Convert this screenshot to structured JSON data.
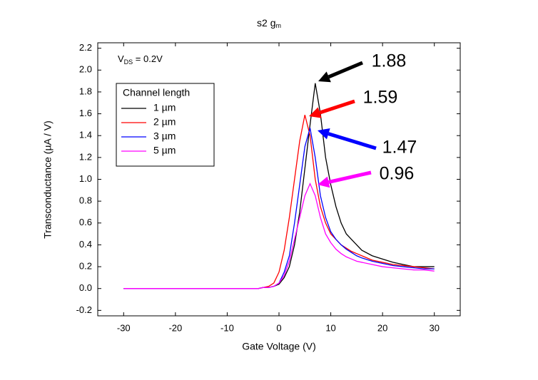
{
  "chart_data": {
    "type": "line",
    "title": "s2 g",
    "title_subscript": "m",
    "x_label": "Gate Voltage (V)",
    "y_label": "Transconductance (µA / V)",
    "condition": {
      "symbol": "V",
      "subscript": "DS",
      "text": " = 0.2V"
    },
    "legend_title": "Channel length",
    "legend": "upper left",
    "xlim": [
      -35,
      35
    ],
    "xticks": [
      -30,
      -20,
      -10,
      0,
      10,
      20,
      30
    ],
    "ylim": [
      -0.25,
      2.25
    ],
    "yticks": [
      -0.2,
      {
        "value": 0,
        "label": "0.0"
      },
      0.2,
      0.4,
      0.6,
      0.8,
      {
        "value": 1,
        "label": "1.0"
      },
      1.2,
      1.4,
      1.6,
      1.8,
      {
        "value": 2,
        "label": "2.0"
      },
      2.2
    ],
    "x": [
      -30,
      -25,
      -20,
      -15,
      -10,
      -5,
      -4,
      -3,
      -2,
      -1,
      0,
      1,
      2,
      3,
      4,
      5,
      6,
      7,
      8,
      9,
      10,
      11,
      12,
      13,
      14,
      15,
      16,
      18,
      20,
      22,
      24,
      26,
      28,
      30
    ],
    "series": [
      {
        "name": "1 µm",
        "color": "#000000",
        "values": [
          0,
          0,
          0,
          0,
          0,
          0,
          0,
          0.01,
          0.01,
          0.02,
          0.04,
          0.1,
          0.2,
          0.4,
          0.7,
          1.1,
          1.5,
          1.88,
          1.6,
          1.2,
          0.95,
          0.75,
          0.6,
          0.5,
          0.45,
          0.4,
          0.35,
          0.3,
          0.27,
          0.24,
          0.22,
          0.2,
          0.2,
          0.2
        ]
      },
      {
        "name": "2 µm",
        "color": "#ff0000",
        "values": [
          0,
          0,
          0,
          0,
          0,
          0,
          0,
          0.01,
          0.02,
          0.05,
          0.15,
          0.35,
          0.65,
          1.0,
          1.35,
          1.59,
          1.4,
          1.0,
          0.75,
          0.6,
          0.5,
          0.45,
          0.4,
          0.37,
          0.34,
          0.32,
          0.3,
          0.26,
          0.24,
          0.22,
          0.21,
          0.2,
          0.19,
          0.18
        ]
      },
      {
        "name": "3 µm",
        "color": "#0000ff",
        "values": [
          0,
          0,
          0,
          0,
          0,
          0,
          0,
          0.01,
          0.01,
          0.02,
          0.05,
          0.15,
          0.3,
          0.6,
          0.95,
          1.3,
          1.47,
          1.2,
          0.85,
          0.65,
          0.52,
          0.45,
          0.4,
          0.36,
          0.33,
          0.3,
          0.28,
          0.25,
          0.23,
          0.21,
          0.2,
          0.19,
          0.18,
          0.18
        ]
      },
      {
        "name": "5 µm",
        "color": "#ff00ff",
        "values": [
          0,
          0,
          0,
          0,
          0,
          0,
          0,
          0.01,
          0.01,
          0.02,
          0.05,
          0.12,
          0.25,
          0.45,
          0.65,
          0.85,
          0.96,
          0.85,
          0.65,
          0.5,
          0.42,
          0.36,
          0.32,
          0.29,
          0.27,
          0.25,
          0.24,
          0.22,
          0.2,
          0.19,
          0.18,
          0.17,
          0.17,
          0.16
        ]
      }
    ],
    "annotations": [
      "1.88",
      "1.59",
      "1.47",
      "0.96"
    ]
  }
}
